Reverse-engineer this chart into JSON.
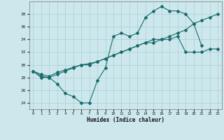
{
  "title": "",
  "xlabel": "Humidex (Indice chaleur)",
  "ylabel": "",
  "bg_color": "#cce8ed",
  "grid_color": "#aacdd4",
  "line_color": "#1a6b6b",
  "x": [
    0,
    1,
    2,
    3,
    4,
    5,
    6,
    7,
    8,
    9,
    10,
    11,
    12,
    13,
    14,
    15,
    16,
    17,
    18,
    19,
    20,
    21,
    22,
    23
  ],
  "line1": [
    29,
    28,
    28,
    27,
    25.5,
    25,
    24,
    24,
    27.5,
    29.5,
    34.5,
    35,
    34.5,
    35,
    37.5,
    38.5,
    39.2,
    38.5,
    38.5,
    38,
    36.5,
    33,
    null,
    null
  ],
  "line2": [
    29,
    28.2,
    28,
    28.5,
    29,
    29.5,
    30,
    30,
    30.5,
    31,
    31.5,
    32,
    32.5,
    33,
    33.5,
    34,
    34,
    34,
    34.5,
    32,
    32,
    32,
    32.5,
    32.5
  ],
  "line3": [
    29,
    28.5,
    28.2,
    28.8,
    29.2,
    29.6,
    30,
    30.2,
    30.5,
    31,
    31.5,
    32,
    32.5,
    33,
    33.5,
    33.5,
    34,
    34.5,
    35,
    35.5,
    36.5,
    37,
    37.5,
    38
  ],
  "ylim": [
    23,
    40
  ],
  "xlim": [
    -0.5,
    23.5
  ],
  "yticks": [
    24,
    26,
    28,
    30,
    32,
    34,
    36,
    38
  ],
  "xticks": [
    0,
    1,
    2,
    3,
    4,
    5,
    6,
    7,
    8,
    9,
    10,
    11,
    12,
    13,
    14,
    15,
    16,
    17,
    18,
    19,
    20,
    21,
    22,
    23
  ]
}
